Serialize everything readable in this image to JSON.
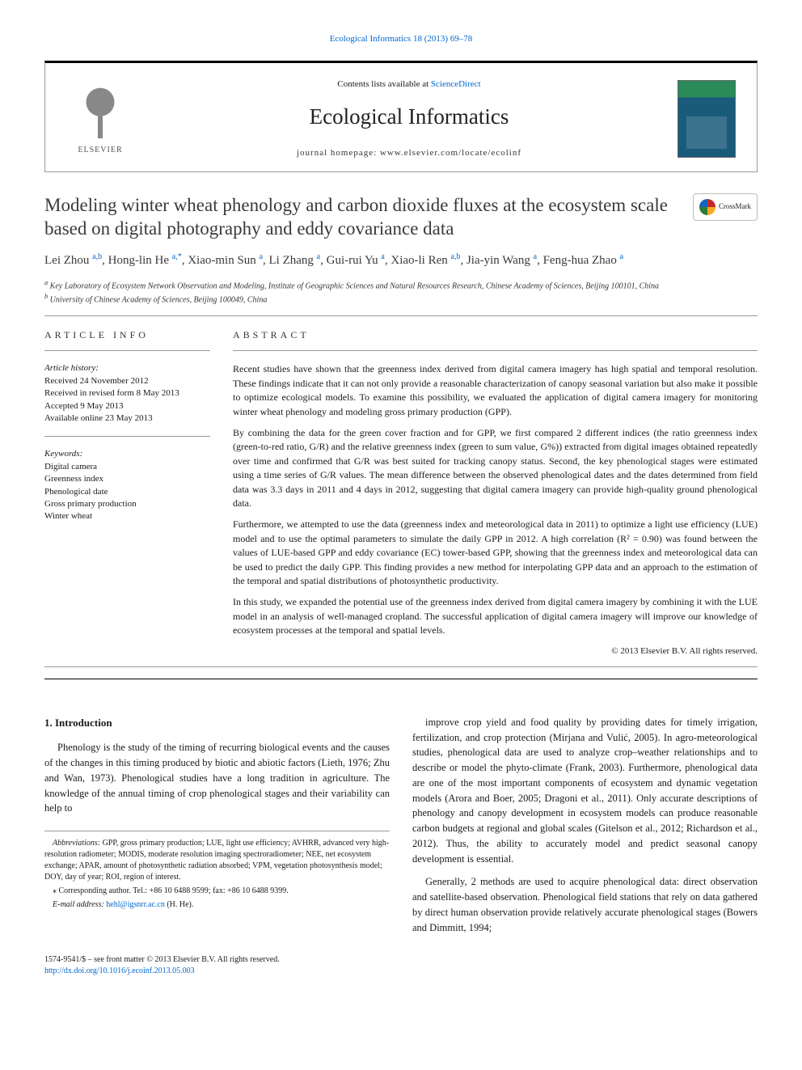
{
  "top": {
    "journal_ref_link": "Ecological Informatics 18 (2013) 69–78",
    "contents": "Contents lists available at ",
    "sciencedirect": "ScienceDirect",
    "journal_name": "Ecological Informatics",
    "homepage": "journal homepage: www.elsevier.com/locate/ecolinf",
    "publisher": "ELSEVIER",
    "cover_label": "ECOLOGICAL INFORMATICS"
  },
  "crossmark": "CrossMark",
  "title": "Modeling winter wheat phenology and carbon dioxide fluxes at the ecosystem scale based on digital photography and eddy covariance data",
  "authors_html": "Lei Zhou <sup>a,b</sup>, Hong-lin He <sup>a,*</sup>, Xiao-min Sun <sup>a</sup>, Li Zhang <sup>a</sup>, Gui-rui Yu <sup>a</sup>, Xiao-li Ren <sup>a,b</sup>, Jia-yin Wang <sup>a</sup>, Feng-hua Zhao <sup>a</sup>",
  "affiliations": {
    "a": "Key Laboratory of Ecosystem Network Observation and Modeling, Institute of Geographic Sciences and Natural Resources Research, Chinese Academy of Sciences, Beijing 100101, China",
    "b": "University of Chinese Academy of Sciences, Beijing 100049, China"
  },
  "info": {
    "head": "ARTICLE INFO",
    "history_label": "Article history:",
    "received": "Received 24 November 2012",
    "revised": "Received in revised form 8 May 2013",
    "accepted": "Accepted 9 May 2013",
    "online": "Available online 23 May 2013",
    "keywords_label": "Keywords:",
    "keywords": [
      "Digital camera",
      "Greenness index",
      "Phenological date",
      "Gross primary production",
      "Winter wheat"
    ]
  },
  "abstract": {
    "head": "ABSTRACT",
    "p1": "Recent studies have shown that the greenness index derived from digital camera imagery has high spatial and temporal resolution. These findings indicate that it can not only provide a reasonable characterization of canopy seasonal variation but also make it possible to optimize ecological models. To examine this possibility, we evaluated the application of digital camera imagery for monitoring winter wheat phenology and modeling gross primary production (GPP).",
    "p2": "By combining the data for the green cover fraction and for GPP, we first compared 2 different indices (the ratio greenness index (green-to-red ratio, G/R) and the relative greenness index (green to sum value, G%)) extracted from digital images obtained repeatedly over time and confirmed that G/R was best suited for tracking canopy status. Second, the key phenological stages were estimated using a time series of G/R values. The mean difference between the observed phenological dates and the dates determined from field data was 3.3 days in 2011 and 4 days in 2012, suggesting that digital camera imagery can provide high-quality ground phenological data.",
    "p3": "Furthermore, we attempted to use the data (greenness index and meteorological data in 2011) to optimize a light use efficiency (LUE) model and to use the optimal parameters to simulate the daily GPP in 2012. A high correlation (R² = 0.90) was found between the values of LUE-based GPP and eddy covariance (EC) tower-based GPP, showing that the greenness index and meteorological data can be used to predict the daily GPP. This finding provides a new method for interpolating GPP data and an approach to the estimation of the temporal and spatial distributions of photosynthetic productivity.",
    "p4": "In this study, we expanded the potential use of the greenness index derived from digital camera imagery by combining it with the LUE model in an analysis of well-managed cropland. The successful application of digital camera imagery will improve our knowledge of ecosystem processes at the temporal and spatial levels.",
    "copyright": "© 2013 Elsevier B.V. All rights reserved."
  },
  "body": {
    "h_intro": "1. Introduction",
    "p1": "Phenology is the study of the timing of recurring biological events and the causes of the changes in this timing produced by biotic and abiotic factors (Lieth, 1976; Zhu and Wan, 1973). Phenological studies have a long tradition in agriculture. The knowledge of the annual timing of crop phenological stages and their variability can help to",
    "p2": "improve crop yield and food quality by providing dates for timely irrigation, fertilization, and crop protection (Mirjana and Vulić, 2005). In agro-meteorological studies, phenological data are used to analyze crop–weather relationships and to describe or model the phyto-climate (Frank, 2003). Furthermore, phenological data are one of the most important components of ecosystem and dynamic vegetation models (Arora and Boer, 2005; Dragoni et al., 2011). Only accurate descriptions of phenology and canopy development in ecosystem models can produce reasonable carbon budgets at regional and global scales (Gitelson et al., 2012; Richardson et al., 2012). Thus, the ability to accurately model and predict seasonal canopy development is essential.",
    "p3": "Generally, 2 methods are used to acquire phenological data: direct observation and satellite-based observation. Phenological field stations that rely on data gathered by direct human observation provide relatively accurate phenological stages (Bowers and Dimmitt, 1994;"
  },
  "footnotes": {
    "abbrev_label": "Abbreviations:",
    "abbrev": " GPP, gross primary production; LUE, light use efficiency; AVHRR, advanced very high-resolution radiometer; MODIS, moderate resolution imaging spectroradiometer; NEE, net ecosystem exchange; APAR, amount of photosynthetic radiation absorbed; VPM, vegetation photosynthesis model; DOY, day of year; ROI, region of interest.",
    "corr": "⁎ Corresponding author. Tel.: +86 10 6488 9599; fax: +86 10 6488 9399.",
    "email_label": "E-mail address: ",
    "email": "hehl@igsnrr.ac.cn",
    "email_name": " (H. He)."
  },
  "bottom": {
    "issn": "1574-9541/$ – see front matter © 2013 Elsevier B.V. All rights reserved.",
    "doi": "http://dx.doi.org/10.1016/j.ecoinf.2013.05.003"
  },
  "colors": {
    "link": "#0066cc",
    "rule": "#000000",
    "text": "#1a1a1a"
  }
}
